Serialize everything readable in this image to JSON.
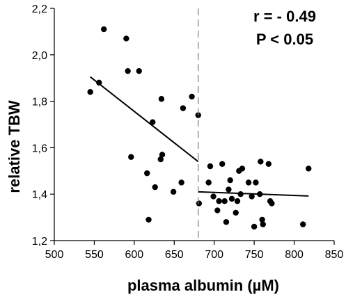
{
  "chart_data": {
    "type": "scatter",
    "xlabel": "plasma albumin (µM)",
    "ylabel": "relative TBW",
    "xlim": [
      500,
      850
    ],
    "ylim": [
      1.2,
      2.2
    ],
    "x_ticks": [
      500,
      550,
      600,
      650,
      700,
      750,
      800,
      850
    ],
    "x_tick_labels": [
      "500",
      "550",
      "600",
      "650",
      "700",
      "750",
      "800",
      "850"
    ],
    "y_ticks": [
      1.2,
      1.4,
      1.6,
      1.8,
      2.0,
      2.2
    ],
    "y_tick_labels": [
      "1,2",
      "1,4",
      "1,6",
      "1,8",
      "2,0",
      "2,2"
    ],
    "grid": false,
    "legend": "none",
    "annotations": [
      "r = - 0.49",
      "P < 0.05"
    ],
    "threshold_x": 680,
    "points": [
      {
        "x": 545,
        "y": 1.84
      },
      {
        "x": 556,
        "y": 1.88
      },
      {
        "x": 562,
        "y": 2.11
      },
      {
        "x": 590,
        "y": 2.07
      },
      {
        "x": 592,
        "y": 1.93
      },
      {
        "x": 596,
        "y": 1.56
      },
      {
        "x": 606,
        "y": 1.93
      },
      {
        "x": 616,
        "y": 1.49
      },
      {
        "x": 618,
        "y": 1.29
      },
      {
        "x": 623,
        "y": 1.71
      },
      {
        "x": 626,
        "y": 1.43
      },
      {
        "x": 633,
        "y": 1.55
      },
      {
        "x": 634,
        "y": 1.81
      },
      {
        "x": 635,
        "y": 1.57
      },
      {
        "x": 649,
        "y": 1.41
      },
      {
        "x": 659,
        "y": 1.45
      },
      {
        "x": 661,
        "y": 1.77
      },
      {
        "x": 672,
        "y": 1.82
      },
      {
        "x": 680,
        "y": 1.74
      },
      {
        "x": 681,
        "y": 1.36
      },
      {
        "x": 693,
        "y": 1.45
      },
      {
        "x": 695,
        "y": 1.52
      },
      {
        "x": 699,
        "y": 1.39
      },
      {
        "x": 704,
        "y": 1.33
      },
      {
        "x": 706,
        "y": 1.37
      },
      {
        "x": 710,
        "y": 1.53
      },
      {
        "x": 713,
        "y": 1.37
      },
      {
        "x": 715,
        "y": 1.28
      },
      {
        "x": 718,
        "y": 1.42
      },
      {
        "x": 720,
        "y": 1.46
      },
      {
        "x": 722,
        "y": 1.38
      },
      {
        "x": 727,
        "y": 1.32
      },
      {
        "x": 729,
        "y": 1.37
      },
      {
        "x": 731,
        "y": 1.5
      },
      {
        "x": 733,
        "y": 1.4
      },
      {
        "x": 735,
        "y": 1.51
      },
      {
        "x": 743,
        "y": 1.45
      },
      {
        "x": 747,
        "y": 1.39
      },
      {
        "x": 750,
        "y": 1.26
      },
      {
        "x": 752,
        "y": 1.45
      },
      {
        "x": 757,
        "y": 1.4
      },
      {
        "x": 758,
        "y": 1.54
      },
      {
        "x": 760,
        "y": 1.29
      },
      {
        "x": 761,
        "y": 1.27
      },
      {
        "x": 768,
        "y": 1.53
      },
      {
        "x": 770,
        "y": 1.37
      },
      {
        "x": 772,
        "y": 1.36
      },
      {
        "x": 811,
        "y": 1.27
      },
      {
        "x": 818,
        "y": 1.51
      }
    ],
    "trend_lines": [
      {
        "x": [
          545,
          680
        ],
        "y": [
          1.905,
          1.54
        ]
      },
      {
        "x": [
          680,
          818
        ],
        "y": [
          1.41,
          1.392
        ]
      }
    ]
  }
}
